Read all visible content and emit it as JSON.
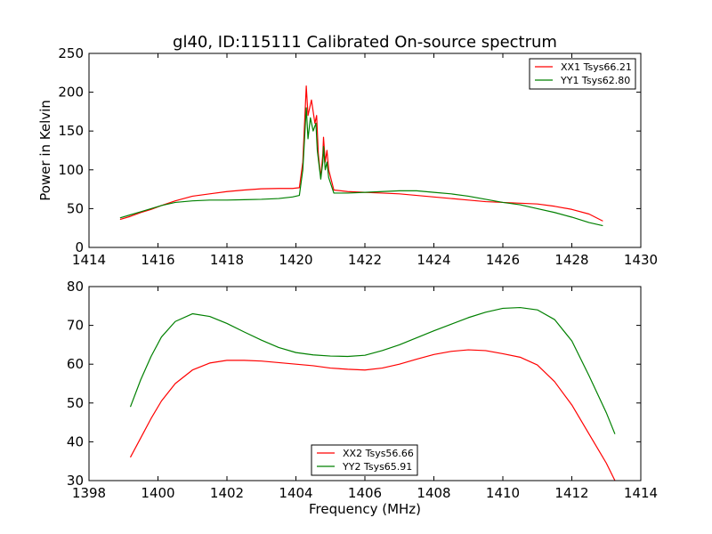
{
  "figure": {
    "title": "gl40, ID:115111 Calibrated On-source spectrum"
  },
  "chart_data": [
    {
      "type": "line",
      "title": "gl40, ID:115111 Calibrated On-source spectrum",
      "xlabel": "",
      "ylabel": "Power in Kelvin",
      "xlim": [
        1414,
        1430
      ],
      "ylim": [
        0,
        250
      ],
      "xticks": [
        1414,
        1416,
        1418,
        1420,
        1422,
        1424,
        1426,
        1428,
        1430
      ],
      "yticks": [
        0,
        50,
        100,
        150,
        200,
        250
      ],
      "grid": false,
      "legend_position": "top-right",
      "series": [
        {
          "name": "XX1 Tsys66.21",
          "color": "#ff0000",
          "x": [
            1414.9,
            1415.2,
            1415.5,
            1415.8,
            1416.1,
            1416.5,
            1417.0,
            1417.5,
            1418.0,
            1418.5,
            1419.0,
            1419.5,
            1419.9,
            1420.1,
            1420.2,
            1420.3,
            1420.35,
            1420.45,
            1420.55,
            1420.6,
            1420.65,
            1420.72,
            1420.78,
            1420.8,
            1420.85,
            1420.9,
            1420.95,
            1421.1,
            1421.5,
            1422.0,
            1422.5,
            1423.0,
            1423.5,
            1424.0,
            1424.5,
            1425.0,
            1425.5,
            1426.0,
            1426.5,
            1427.0,
            1427.5,
            1428.0,
            1428.5,
            1428.9
          ],
          "y": [
            36,
            40,
            45,
            49,
            54,
            60,
            66,
            69,
            72,
            74,
            75.5,
            76,
            76,
            77,
            110,
            208,
            170,
            190,
            160,
            170,
            120,
            90,
            120,
            142,
            110,
            125,
            100,
            74,
            72,
            71,
            70,
            69,
            67,
            65,
            63,
            61,
            59,
            58,
            57,
            56,
            53,
            49,
            43,
            34
          ]
        },
        {
          "name": "YY1 Tsys62.80",
          "color": "#008000",
          "x": [
            1414.9,
            1415.2,
            1415.5,
            1415.8,
            1416.1,
            1416.5,
            1417.0,
            1417.5,
            1418.0,
            1418.5,
            1419.0,
            1419.5,
            1419.9,
            1420.1,
            1420.2,
            1420.3,
            1420.35,
            1420.42,
            1420.5,
            1420.58,
            1420.62,
            1420.72,
            1420.78,
            1420.8,
            1420.85,
            1420.9,
            1420.95,
            1421.1,
            1421.5,
            1422.0,
            1422.5,
            1423.0,
            1423.5,
            1424.0,
            1424.5,
            1425.0,
            1425.5,
            1426.0,
            1426.5,
            1427.0,
            1427.5,
            1428.0,
            1428.5,
            1428.9
          ],
          "y": [
            38,
            42,
            46,
            50,
            54,
            58,
            60,
            61,
            61,
            61.5,
            62,
            63,
            65,
            67,
            100,
            180,
            140,
            167,
            150,
            160,
            125,
            88,
            110,
            130,
            100,
            110,
            90,
            70,
            70,
            71,
            72,
            73,
            73,
            71,
            69,
            66,
            62,
            58,
            55,
            50,
            45,
            39,
            32,
            28
          ]
        }
      ]
    },
    {
      "type": "line",
      "title": "",
      "xlabel": "Frequency (MHz)",
      "ylabel": "",
      "xlim": [
        1398,
        1414
      ],
      "ylim": [
        30,
        80
      ],
      "xticks": [
        1398,
        1400,
        1402,
        1404,
        1406,
        1408,
        1410,
        1412,
        1414
      ],
      "yticks": [
        30,
        40,
        50,
        60,
        70,
        80
      ],
      "grid": false,
      "legend_position": "bottom-center",
      "series": [
        {
          "name": "XX2 Tsys56.66",
          "color": "#ff0000",
          "x": [
            1399.2,
            1399.5,
            1399.8,
            1400.1,
            1400.5,
            1401.0,
            1401.5,
            1402.0,
            1402.5,
            1403.0,
            1403.5,
            1404.0,
            1404.5,
            1405.0,
            1405.5,
            1406.0,
            1406.5,
            1407.0,
            1407.5,
            1408.0,
            1408.5,
            1409.0,
            1409.5,
            1410.0,
            1410.5,
            1411.0,
            1411.5,
            1412.0,
            1412.5,
            1413.0,
            1413.25
          ],
          "y": [
            36,
            41,
            46,
            50.5,
            55,
            58.5,
            60.3,
            61,
            61,
            60.8,
            60.4,
            60,
            59.6,
            59,
            58.7,
            58.5,
            59,
            60,
            61.3,
            62.5,
            63.3,
            63.7,
            63.5,
            62.7,
            61.8,
            59.8,
            55.5,
            49.5,
            42,
            34.5,
            30
          ]
        },
        {
          "name": "YY2 Tsys65.91",
          "color": "#008000",
          "x": [
            1399.2,
            1399.5,
            1399.8,
            1400.1,
            1400.5,
            1401.0,
            1401.5,
            1402.0,
            1402.5,
            1403.0,
            1403.5,
            1404.0,
            1404.5,
            1405.0,
            1405.5,
            1406.0,
            1406.5,
            1407.0,
            1407.5,
            1408.0,
            1408.5,
            1409.0,
            1409.5,
            1410.0,
            1410.5,
            1411.0,
            1411.5,
            1412.0,
            1412.5,
            1413.0,
            1413.25
          ],
          "y": [
            49,
            56,
            62,
            67,
            71,
            73,
            72.3,
            70.5,
            68.3,
            66.2,
            64.3,
            63,
            62.4,
            62.1,
            62,
            62.3,
            63.5,
            65,
            66.8,
            68.6,
            70.3,
            72,
            73.4,
            74.4,
            74.6,
            74,
            71.5,
            66,
            57,
            47.5,
            42
          ]
        }
      ]
    }
  ]
}
